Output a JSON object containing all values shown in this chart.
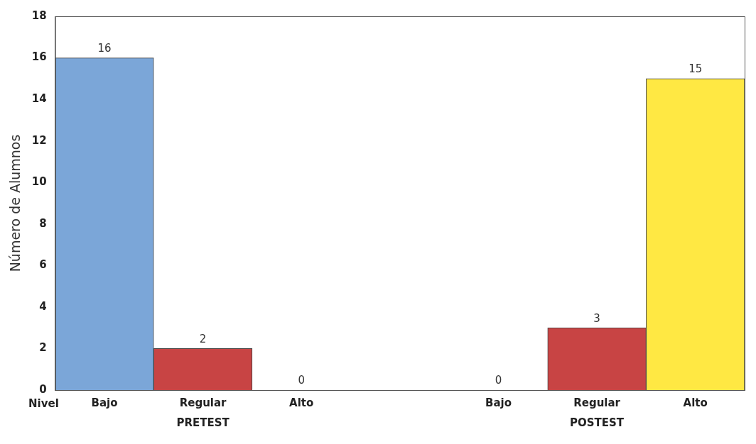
{
  "chart_data": {
    "type": "bar",
    "ylabel": "Número de Alumnos",
    "xlabel": "Nivel",
    "categories": [
      "Bajo",
      "Regular",
      "Alto",
      null,
      "Bajo",
      "Regular",
      "Alto"
    ],
    "values": [
      16,
      2,
      0,
      null,
      0,
      3,
      15
    ],
    "colors": [
      "#7ba6d8",
      "#c84444",
      "#ffe843",
      null,
      "#7ba6d8",
      "#c84444",
      "#ffe843"
    ],
    "ylim": [
      0,
      18
    ],
    "yticks": [
      0,
      2,
      4,
      6,
      8,
      10,
      12,
      14,
      16,
      18
    ],
    "grid": false,
    "legend": false,
    "data_labels": true,
    "annotations": [
      "PRETEST",
      "POSTEST"
    ]
  }
}
